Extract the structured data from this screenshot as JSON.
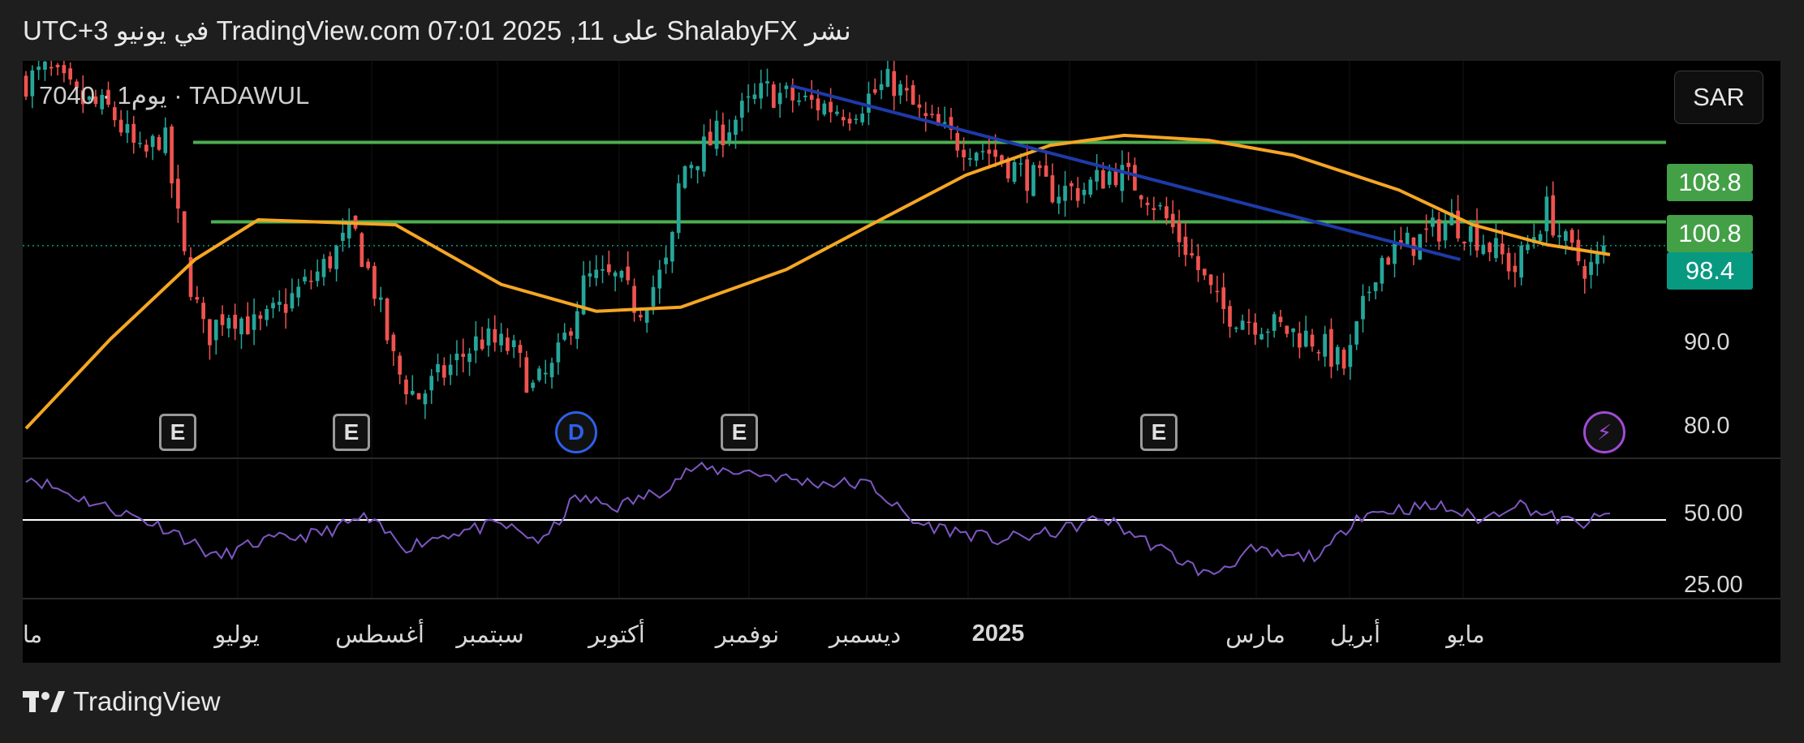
{
  "header": {
    "published_text": "نشر ShalabyFX على TradingView.com 07:01 2025 ,11 في يونيو UTC+3"
  },
  "symbol_line": "7040 · 1يوم · TADAWUL",
  "currency_button": "SAR",
  "price_tags": [
    {
      "label": "108.8",
      "color": "#43a047"
    },
    {
      "label": "100.8",
      "color": "#43a047"
    },
    {
      "label": "98.4",
      "color": "#089981"
    }
  ],
  "price_axis_labels": [
    "90.0",
    "80.0"
  ],
  "rsi_axis_labels": [
    "50.00",
    "25.00"
  ],
  "months": [
    "ما",
    "يوليو",
    "أغسطس",
    "سبتمبر",
    "أكتوبر",
    "نوفمبر",
    "ديسمبر",
    "2025",
    "مارس",
    "أبريل",
    "مايو"
  ],
  "event_markers": [
    {
      "label": "E",
      "kind": "earnings"
    },
    {
      "label": "E",
      "kind": "earnings"
    },
    {
      "label": "D",
      "kind": "dividend"
    },
    {
      "label": "E",
      "kind": "earnings"
    },
    {
      "label": "E",
      "kind": "earnings"
    },
    {
      "label": "⚡",
      "kind": "flash"
    }
  ],
  "footer": {
    "brand": "TradingView"
  },
  "colors": {
    "up": "#26a69a",
    "down": "#ef5350",
    "support": "#4caf50",
    "trendline": "#1e3aa8",
    "moving_average": "#f5a623",
    "rsi": "#7e57c2",
    "rsi_level": "#ffffff"
  },
  "chart_data": {
    "type": "candlestick",
    "title": "7040 · 1يوم · TADAWUL",
    "ylim": [
      77,
      117
    ],
    "horizontal_levels": [
      108.8,
      100.8
    ],
    "last_price": 98.4,
    "trendline": {
      "from": {
        "date": "2024-11-26",
        "value": 114.5
      },
      "to": {
        "date": "2025-05-06",
        "value": 97
      }
    },
    "moving_average_points": [
      [
        0,
        80
      ],
      [
        0.08,
        89
      ],
      [
        0.16,
        97
      ],
      [
        0.22,
        101
      ],
      [
        0.35,
        100.5
      ],
      [
        0.45,
        94.5
      ],
      [
        0.54,
        91.8
      ],
      [
        0.62,
        92.2
      ],
      [
        0.72,
        96
      ],
      [
        0.8,
        100.5
      ],
      [
        0.89,
        105.5
      ],
      [
        0.97,
        108.5
      ],
      [
        1.04,
        109.5
      ],
      [
        1.12,
        109
      ],
      [
        1.2,
        107.5
      ],
      [
        1.3,
        104
      ],
      [
        1.37,
        100.5
      ],
      [
        1.44,
        98.5
      ],
      [
        1.5,
        97.5
      ]
    ],
    "close_waypoints": [
      [
        0,
        115
      ],
      [
        0.02,
        116
      ],
      [
        0.05,
        113
      ],
      [
        0.08,
        112
      ],
      [
        0.11,
        107
      ],
      [
        0.13,
        110
      ],
      [
        0.15,
        97
      ],
      [
        0.17,
        89
      ],
      [
        0.19,
        92
      ],
      [
        0.22,
        90
      ],
      [
        0.25,
        93
      ],
      [
        0.28,
        96
      ],
      [
        0.31,
        100
      ],
      [
        0.33,
        94
      ],
      [
        0.35,
        86
      ],
      [
        0.37,
        83
      ],
      [
        0.4,
        86
      ],
      [
        0.43,
        89
      ],
      [
        0.46,
        88
      ],
      [
        0.48,
        84
      ],
      [
        0.5,
        86
      ],
      [
        0.53,
        95
      ],
      [
        0.56,
        95
      ],
      [
        0.58,
        92
      ],
      [
        0.61,
        97
      ],
      [
        0.62,
        106
      ],
      [
        0.64,
        108
      ],
      [
        0.67,
        111
      ],
      [
        0.7,
        114
      ],
      [
        0.73,
        113
      ],
      [
        0.78,
        112
      ],
      [
        0.82,
        115
      ],
      [
        0.85,
        111
      ],
      [
        0.88,
        109
      ],
      [
        0.91,
        108
      ],
      [
        0.94,
        106
      ],
      [
        0.97,
        104
      ],
      [
        1.0,
        104
      ],
      [
        1.03,
        106
      ],
      [
        1.06,
        104
      ],
      [
        1.1,
        98
      ],
      [
        1.13,
        92
      ],
      [
        1.16,
        91
      ],
      [
        1.19,
        90
      ],
      [
        1.22,
        89
      ],
      [
        1.25,
        86
      ],
      [
        1.28,
        97
      ],
      [
        1.32,
        99
      ],
      [
        1.35,
        101
      ],
      [
        1.38,
        99
      ],
      [
        1.41,
        96
      ],
      [
        1.44,
        102
      ],
      [
        1.46,
        98
      ],
      [
        1.48,
        96
      ],
      [
        1.5,
        98.4
      ]
    ],
    "rsi": {
      "levels": [
        50
      ],
      "ylim": [
        15,
        77
      ],
      "waypoints": [
        [
          0,
          70
        ],
        [
          0.05,
          60
        ],
        [
          0.1,
          52
        ],
        [
          0.14,
          45
        ],
        [
          0.18,
          33
        ],
        [
          0.22,
          40
        ],
        [
          0.28,
          44
        ],
        [
          0.32,
          51
        ],
        [
          0.36,
          38
        ],
        [
          0.4,
          44
        ],
        [
          0.45,
          48
        ],
        [
          0.49,
          40
        ],
        [
          0.52,
          60
        ],
        [
          0.56,
          56
        ],
        [
          0.6,
          63
        ],
        [
          0.63,
          73
        ],
        [
          0.68,
          72
        ],
        [
          0.74,
          67
        ],
        [
          0.8,
          66
        ],
        [
          0.84,
          49
        ],
        [
          0.88,
          45
        ],
        [
          0.92,
          41
        ],
        [
          0.97,
          44
        ],
        [
          1.02,
          51
        ],
        [
          1.07,
          38
        ],
        [
          1.12,
          25
        ],
        [
          1.16,
          36
        ],
        [
          1.2,
          33
        ],
        [
          1.23,
          35
        ],
        [
          1.26,
          52
        ],
        [
          1.3,
          55
        ],
        [
          1.34,
          56
        ],
        [
          1.38,
          50
        ],
        [
          1.41,
          58
        ],
        [
          1.44,
          52
        ],
        [
          1.47,
          48
        ],
        [
          1.5,
          52
        ]
      ]
    }
  }
}
